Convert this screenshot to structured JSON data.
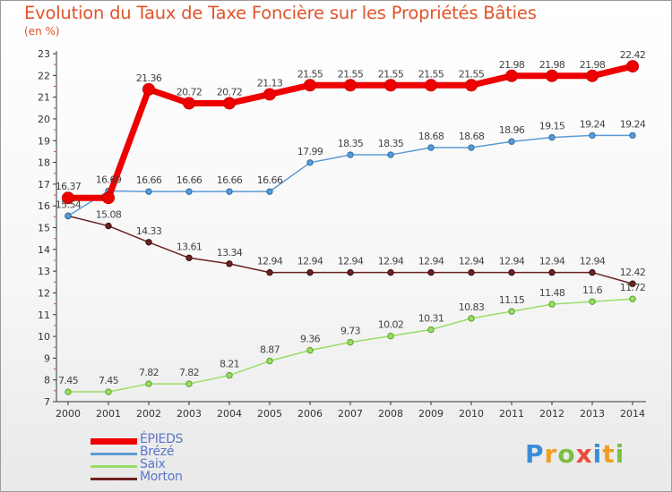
{
  "title": "Evolution du Taux de Taxe Foncière sur les Propriétés Bâties",
  "unit": "(en %)",
  "brand": {
    "text": "Proxiti",
    "letters": [
      {
        "char": "P",
        "color": "#3a8ed8"
      },
      {
        "char": "r",
        "color": "#f0a020"
      },
      {
        "char": "o",
        "color": "#7bc043"
      },
      {
        "char": "x",
        "color": "#e84c3d"
      },
      {
        "char": "i",
        "color": "#3a8ed8"
      },
      {
        "char": "t",
        "color": "#f0a020"
      },
      {
        "char": "i",
        "color": "#7bc043"
      }
    ]
  },
  "chart_data": {
    "type": "line",
    "title": "Evolution du Taux de Taxe Foncière sur les Propriétés Bâties",
    "ylabel": "(en %)",
    "xlabel": "",
    "ylim": [
      7,
      23
    ],
    "yticks": [
      7,
      8,
      9,
      10,
      11,
      12,
      13,
      14,
      15,
      16,
      17,
      18,
      19,
      20,
      21,
      22,
      23
    ],
    "categories": [
      "2000",
      "2001",
      "2002",
      "2003",
      "2004",
      "2005",
      "2006",
      "2007",
      "2008",
      "2009",
      "2010",
      "2011",
      "2012",
      "2013",
      "2014"
    ],
    "grid": false,
    "legend_position": "bottom-left",
    "series": [
      {
        "name": "ÉPIEDS",
        "color": "#ee0000",
        "values": [
          16.37,
          16.37,
          21.36,
          20.72,
          20.72,
          21.13,
          21.55,
          21.55,
          21.55,
          21.55,
          21.55,
          21.98,
          21.98,
          21.98,
          22.42
        ],
        "labels": [
          "16.37",
          "",
          "21.36",
          "20.72",
          "20.72",
          "21.13",
          "21.55",
          "21.55",
          "21.55",
          "21.55",
          "21.55",
          "21.98",
          "21.98",
          "21.98",
          "22.42"
        ]
      },
      {
        "name": "Brézé",
        "color": "#5b9bd5",
        "values": [
          15.54,
          16.69,
          16.66,
          16.66,
          16.66,
          16.66,
          17.99,
          18.35,
          18.35,
          18.68,
          18.68,
          18.96,
          19.15,
          19.24,
          19.24
        ],
        "labels": [
          "",
          "16.69",
          "16.66",
          "16.66",
          "16.66",
          "16.66",
          "17.99",
          "18.35",
          "18.35",
          "18.68",
          "18.68",
          "18.96",
          "19.15",
          "19.24",
          "19.24"
        ]
      },
      {
        "name": "Saix",
        "color": "#99dd66",
        "values": [
          7.45,
          7.45,
          7.82,
          7.82,
          8.21,
          8.87,
          9.36,
          9.73,
          10.02,
          10.31,
          10.83,
          11.15,
          11.48,
          11.6,
          11.72
        ],
        "labels": [
          "7.45",
          "7.45",
          "7.82",
          "7.82",
          "8.21",
          "8.87",
          "9.36",
          "9.73",
          "10.02",
          "10.31",
          "10.83",
          "11.15",
          "11.48",
          "11.6",
          "11.72"
        ]
      },
      {
        "name": "Morton",
        "color": "#6b2323",
        "values": [
          15.54,
          15.08,
          14.33,
          13.61,
          13.34,
          12.94,
          12.94,
          12.94,
          12.94,
          12.94,
          12.94,
          12.94,
          12.94,
          12.94,
          12.42
        ],
        "labels": [
          "15.54",
          "15.08",
          "14.33",
          "13.61",
          "13.34",
          "12.94",
          "12.94",
          "12.94",
          "12.94",
          "12.94",
          "12.94",
          "12.94",
          "12.94",
          "12.94",
          "12.42"
        ]
      }
    ]
  }
}
